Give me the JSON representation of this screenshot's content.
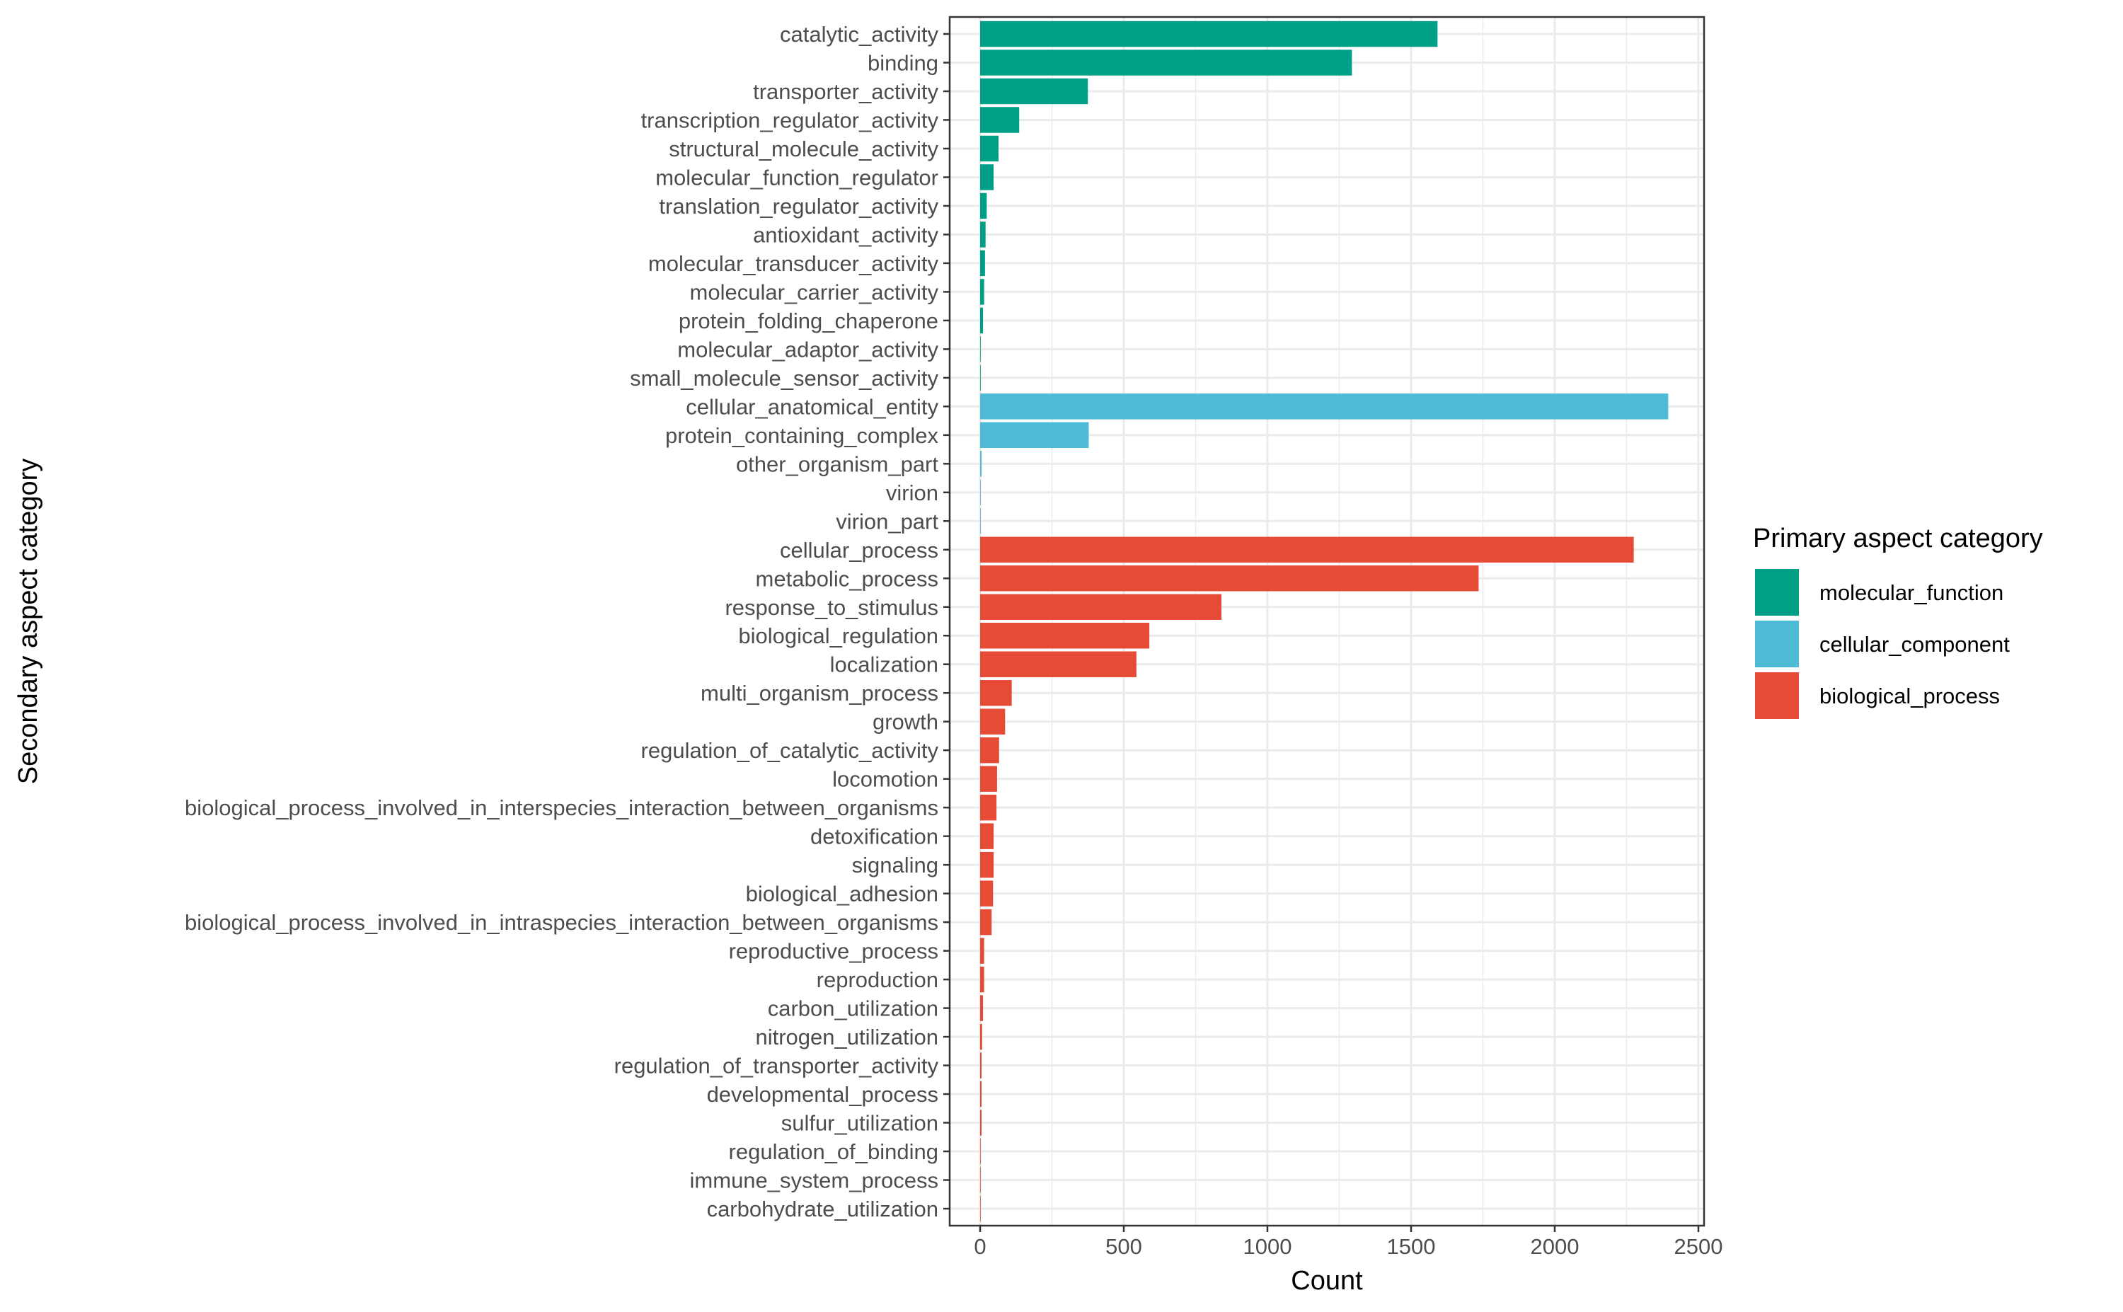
{
  "chart_data": {
    "type": "bar",
    "orientation": "horizontal",
    "xlabel": "Count",
    "ylabel": "Secondary aspect category",
    "xlim": [
      0,
      2500
    ],
    "xticks": [
      "0",
      "500",
      "1000",
      "1500",
      "2000",
      "2500"
    ],
    "grid": true,
    "legend": {
      "title": "Primary aspect category",
      "placement": "right",
      "entries": [
        "molecular_function",
        "cellular_component",
        "biological_process"
      ]
    },
    "colors": {
      "molecular_function": "#00A087",
      "cellular_component": "#4DBBD5",
      "biological_process": "#E64B35"
    },
    "categories": [
      {
        "label": "catalytic_activity",
        "group": "molecular_function",
        "value": 1592
      },
      {
        "label": "binding",
        "group": "molecular_function",
        "value": 1294
      },
      {
        "label": "transporter_activity",
        "group": "molecular_function",
        "value": 375
      },
      {
        "label": "transcription_regulator_activity",
        "group": "molecular_function",
        "value": 136
      },
      {
        "label": "structural_molecule_activity",
        "group": "molecular_function",
        "value": 64
      },
      {
        "label": "molecular_function_regulator",
        "group": "molecular_function",
        "value": 47
      },
      {
        "label": "translation_regulator_activity",
        "group": "molecular_function",
        "value": 23
      },
      {
        "label": "antioxidant_activity",
        "group": "molecular_function",
        "value": 19
      },
      {
        "label": "molecular_transducer_activity",
        "group": "molecular_function",
        "value": 17
      },
      {
        "label": "molecular_carrier_activity",
        "group": "molecular_function",
        "value": 14
      },
      {
        "label": "protein_folding_chaperone",
        "group": "molecular_function",
        "value": 10
      },
      {
        "label": "molecular_adaptor_activity",
        "group": "molecular_function",
        "value": 2
      },
      {
        "label": "small_molecule_sensor_activity",
        "group": "molecular_function",
        "value": 2
      },
      {
        "label": "cellular_anatomical_entity",
        "group": "cellular_component",
        "value": 2395
      },
      {
        "label": "protein_containing_complex",
        "group": "cellular_component",
        "value": 378
      },
      {
        "label": "other_organism_part",
        "group": "cellular_component",
        "value": 5
      },
      {
        "label": "virion",
        "group": "cellular_component",
        "value": 1
      },
      {
        "label": "virion_part",
        "group": "cellular_component",
        "value": 1
      },
      {
        "label": "cellular_process",
        "group": "biological_process",
        "value": 2275
      },
      {
        "label": "metabolic_process",
        "group": "biological_process",
        "value": 1735
      },
      {
        "label": "response_to_stimulus",
        "group": "biological_process",
        "value": 840
      },
      {
        "label": "biological_regulation",
        "group": "biological_process",
        "value": 589
      },
      {
        "label": "localization",
        "group": "biological_process",
        "value": 544
      },
      {
        "label": "multi_organism_process",
        "group": "biological_process",
        "value": 110
      },
      {
        "label": "growth",
        "group": "biological_process",
        "value": 87
      },
      {
        "label": "regulation_of_catalytic_activity",
        "group": "biological_process",
        "value": 66
      },
      {
        "label": "locomotion",
        "group": "biological_process",
        "value": 59
      },
      {
        "label": "biological_process_involved_in_interspecies_interaction_between_organisms",
        "group": "biological_process",
        "value": 57
      },
      {
        "label": "detoxification",
        "group": "biological_process",
        "value": 47
      },
      {
        "label": "signaling",
        "group": "biological_process",
        "value": 47
      },
      {
        "label": "biological_adhesion",
        "group": "biological_process",
        "value": 45
      },
      {
        "label": "biological_process_involved_in_intraspecies_interaction_between_organisms",
        "group": "biological_process",
        "value": 40
      },
      {
        "label": "reproductive_process",
        "group": "biological_process",
        "value": 14
      },
      {
        "label": "reproduction",
        "group": "biological_process",
        "value": 14
      },
      {
        "label": "carbon_utilization",
        "group": "biological_process",
        "value": 10
      },
      {
        "label": "nitrogen_utilization",
        "group": "biological_process",
        "value": 7
      },
      {
        "label": "regulation_of_transporter_activity",
        "group": "biological_process",
        "value": 5
      },
      {
        "label": "developmental_process",
        "group": "biological_process",
        "value": 5
      },
      {
        "label": "sulfur_utilization",
        "group": "biological_process",
        "value": 5
      },
      {
        "label": "regulation_of_binding",
        "group": "biological_process",
        "value": 2
      },
      {
        "label": "immune_system_process",
        "group": "biological_process",
        "value": 1
      },
      {
        "label": "carbohydrate_utilization",
        "group": "biological_process",
        "value": 1
      }
    ]
  }
}
